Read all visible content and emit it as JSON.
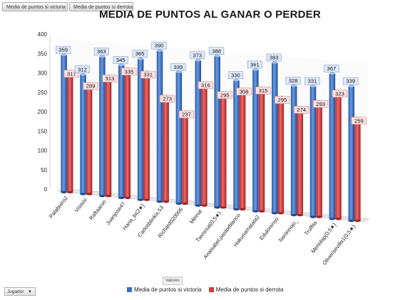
{
  "pivot_buttons": {
    "victoria": "Media de puntos si victoria",
    "derrota": "Media de puntos si derrota",
    "jugador": "Jugador",
    "valores": "Valores"
  },
  "colors": {
    "victoria": "#3a6fc4",
    "derrota": "#d63a3a",
    "floor": "#e6e6e6"
  },
  "chart_data": {
    "type": "bar",
    "title": "MEDIA DE PUNTOS AL GANAR O PERDER",
    "ylim": [
      0,
      400
    ],
    "yticks": [
      "0",
      "50",
      "100",
      "150",
      "200",
      "250",
      "300",
      "350",
      "400"
    ],
    "grid": false,
    "legend_position": "bottom",
    "categories": [
      "Palabrero2",
      "Visisisi",
      "Raftaaron",
      "Juanjose47",
      "Hana_bi(2★)",
      "Carlosblinkis.53",
      "Richard020006",
      "Meinat",
      "Tterresal(0,5★)",
      "Anaisabel.pastorblanco",
      "Hakunamatata2",
      "Edulorenso",
      "baronnojo_",
      "Truffita",
      "Meriolap(0,5★)",
      "Oliverisevilla1(0,5★)"
    ],
    "series": [
      {
        "name": "Media de puntos si victoria",
        "values": [
          359,
          312,
          363,
          345,
          365,
          390,
          339,
          373,
          388,
          330,
          361,
          383,
          328,
          331,
          367,
          339
        ],
        "labels": [
          "359",
          "312",
          "363",
          "345",
          "365",
          "390",
          "339",
          "373",
          "388",
          "330",
          "361",
          "383",
          "328",
          "331",
          "367",
          "339"
        ]
      },
      {
        "name": "Media de puntos si derrota",
        "values": [
          317,
          289,
          313,
          335,
          331,
          273,
          237,
          316,
          295,
          308,
          315,
          295,
          274,
          293,
          323,
          259
        ],
        "labels": [
          "317",
          "289",
          "313",
          "335",
          "331",
          "273",
          "237",
          "316",
          "295",
          "308",
          "315",
          "295",
          "274",
          "293",
          "323",
          "259"
        ]
      }
    ]
  }
}
